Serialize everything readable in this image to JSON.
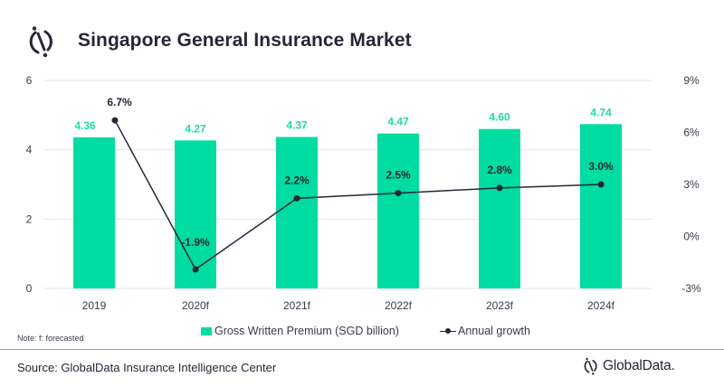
{
  "header": {
    "title": "Singapore General Insurance Market",
    "logo_icon": "globaldata-mark-icon"
  },
  "chart_data": {
    "type": "bar",
    "title": "Singapore General Insurance Market",
    "categories": [
      "2019",
      "2020f",
      "2021f",
      "2022f",
      "2023f",
      "2024f"
    ],
    "series": [
      {
        "name": "Gross Written Premium (SGD billion)",
        "type": "bar",
        "axis": "left",
        "color": "#00dca2",
        "values": [
          4.36,
          4.27,
          4.37,
          4.47,
          4.6,
          4.74
        ],
        "labels": [
          "4.36",
          "4.27",
          "4.37",
          "4.47",
          "4.60",
          "4.74"
        ]
      },
      {
        "name": "Annual growth",
        "type": "line",
        "axis": "right",
        "color": "#262637",
        "values": [
          6.7,
          -1.9,
          2.2,
          2.5,
          2.8,
          3.0
        ],
        "labels": [
          "6.7%",
          "-1.9%",
          "2.2%",
          "2.5%",
          "2.8%",
          "3.0%"
        ]
      }
    ],
    "y_left": {
      "ylim": [
        0,
        6
      ],
      "ticks": [
        0,
        2,
        4,
        6
      ],
      "tick_labels": [
        "0",
        "2",
        "4",
        "6"
      ]
    },
    "y_right": {
      "ylim": [
        -3,
        9
      ],
      "ticks": [
        -3,
        0,
        3,
        6,
        9
      ],
      "tick_labels": [
        "-3%",
        "0%",
        "3%",
        "6%",
        "9%"
      ]
    },
    "xlabel": "",
    "ylabel": "",
    "grid": true,
    "legend": {
      "placement": "bottom",
      "entries": [
        "Gross Written Premium (SGD billion)",
        "Annual growth"
      ]
    }
  },
  "note": "Note: f: forecasted",
  "footer": {
    "source": "Source: GlobalData Insurance Intelligence Center",
    "brand": "GlobalData."
  }
}
